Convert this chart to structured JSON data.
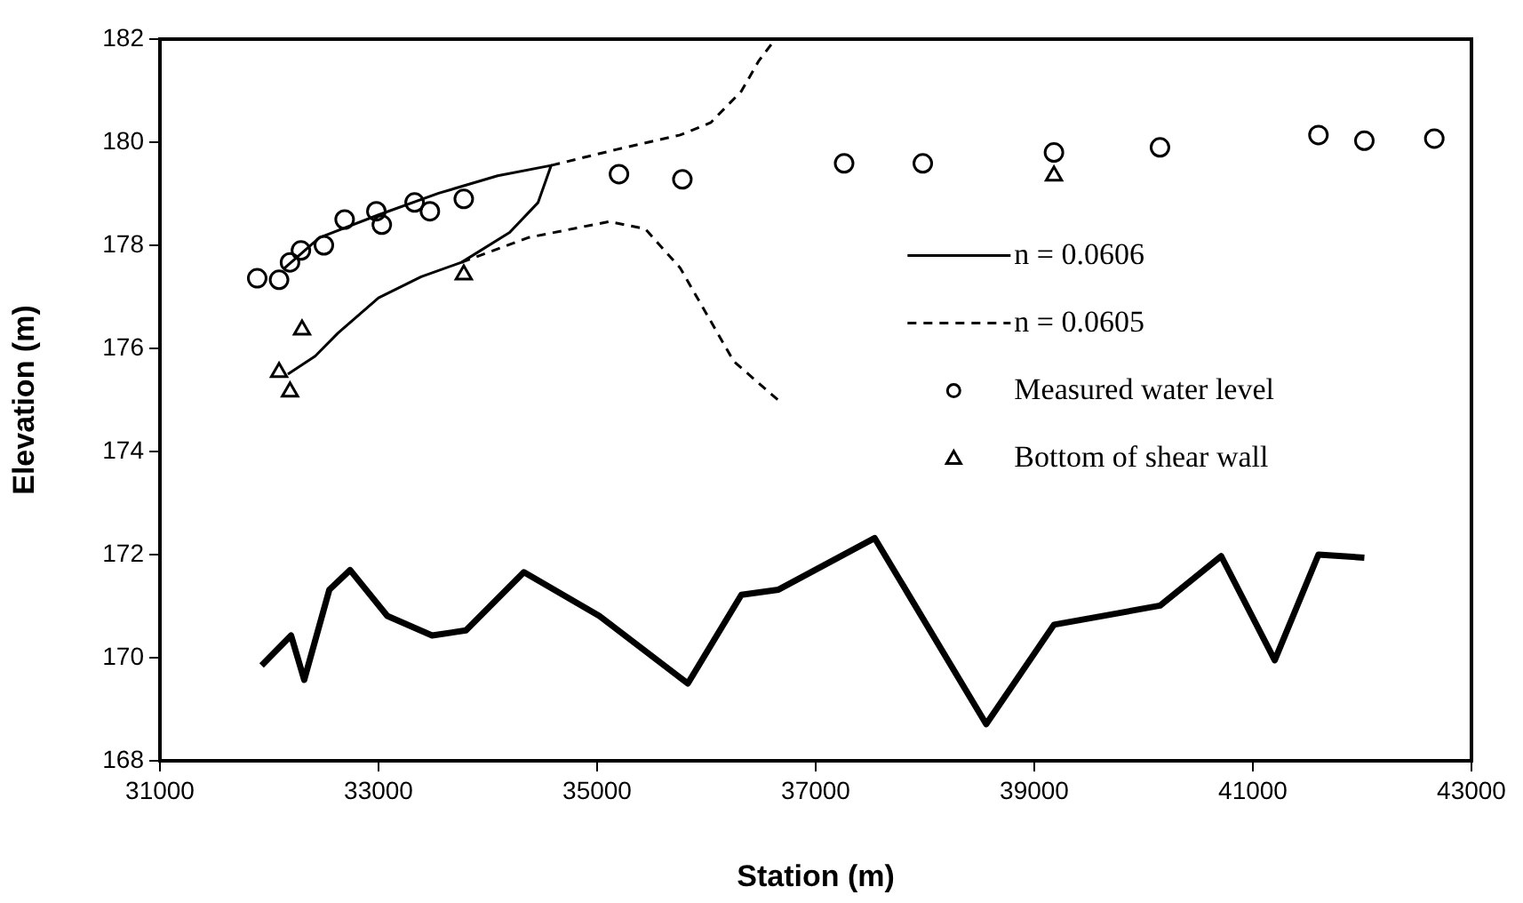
{
  "chart_data": {
    "type": "line",
    "xlabel": "Station (m)",
    "ylabel": "Elevation (m)",
    "xlim": [
      31000,
      43000
    ],
    "xticks": [
      31000,
      33000,
      35000,
      37000,
      39000,
      41000,
      43000
    ],
    "ylim": [
      168,
      182
    ],
    "yticks": [
      168,
      170,
      172,
      174,
      176,
      178,
      180,
      182
    ],
    "grid": false,
    "legend": "right",
    "series": [
      {
        "name": "n = 0.0606",
        "color": "#000000",
        "line_style": "solid",
        "marker": "none",
        "x": [
          32170,
          32420,
          32630,
          33000,
          33390,
          33760,
          34200,
          34460,
          34580,
          34090,
          33550,
          33000,
          32460,
          32140
        ],
        "values": [
          175.5,
          175.85,
          176.3,
          176.98,
          177.39,
          177.67,
          178.25,
          178.83,
          179.55,
          179.35,
          179.01,
          178.59,
          178.15,
          177.56
        ]
      },
      {
        "name": "n = 0.0605",
        "color": "#000000",
        "line_style": "dashed",
        "marker": "none",
        "x": [
          34580,
          35180,
          35760,
          36040,
          36320,
          36480,
          36630
        ],
        "values": [
          179.55,
          179.86,
          180.14,
          180.38,
          180.99,
          181.58,
          182
        ]
      },
      {
        "name": "Measured water level",
        "type": "scatter",
        "color": "#000000",
        "marker": "circle",
        "x": [
          31890,
          32090,
          32190,
          32290,
          32500,
          32690,
          32980,
          33030,
          33330,
          33470,
          33780,
          35200,
          35780,
          37260,
          37980,
          39180,
          40150,
          41600,
          42020,
          42660
        ],
        "values": [
          177.36,
          177.33,
          177.67,
          177.9,
          178.0,
          178.5,
          178.66,
          178.4,
          178.83,
          178.66,
          178.9,
          179.38,
          179.28,
          179.59,
          179.59,
          179.8,
          179.9,
          180.14,
          180.03,
          180.07
        ]
      },
      {
        "name": "Bottom of shear wall",
        "type": "scatter",
        "color": "#000000",
        "marker": "triangle",
        "x": [
          32300,
          32090,
          32190,
          33780,
          39180
        ],
        "values": [
          176.36,
          175.54,
          175.16,
          177.43,
          179.35
        ]
      },
      {
        "color": "#000000",
        "line_style": "dashed",
        "marker": "none",
        "x": [
          33760,
          34370,
          35110,
          35440,
          35760,
          36250,
          36660
        ],
        "values": [
          177.67,
          178.15,
          178.46,
          178.32,
          177.56,
          175.75,
          174.99
        ]
      },
      {
        "color": "#000000",
        "line_style": "solid",
        "marker": "none",
        "x": [
          31930,
          32200,
          32320,
          32550,
          32740,
          33080,
          33490,
          33800,
          34330,
          35020,
          35830,
          36320,
          36660,
          37540,
          38560,
          39180,
          40150,
          40710,
          41200,
          41600,
          42020
        ],
        "values": [
          169.85,
          170.43,
          169.57,
          171.32,
          171.7,
          170.81,
          170.43,
          170.53,
          171.66,
          170.81,
          169.5,
          171.22,
          171.32,
          172.32,
          168.71,
          170.64,
          171.01,
          171.97,
          169.95,
          172.0,
          171.94
        ]
      }
    ]
  }
}
